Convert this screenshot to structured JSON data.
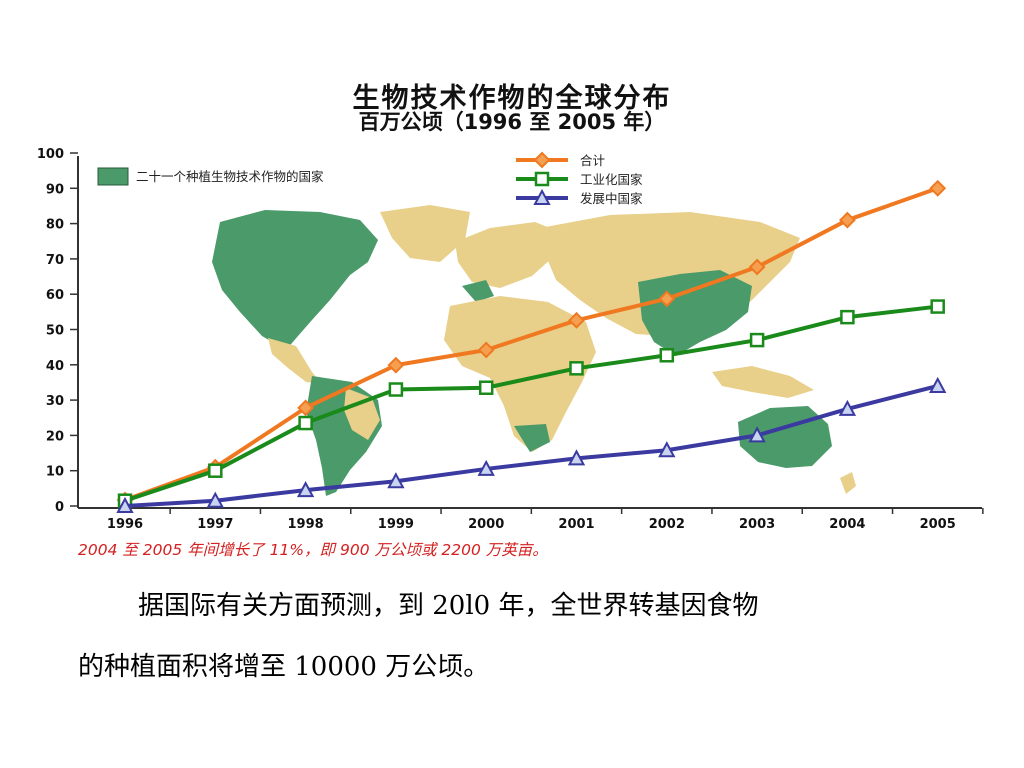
{
  "chart_data": {
    "type": "line",
    "title": "生物技术作物的全球分布",
    "subtitle": "百万公顷（1996 至 2005 年）",
    "categories": [
      "1996",
      "1997",
      "1998",
      "1999",
      "2000",
      "2001",
      "2002",
      "2003",
      "2004",
      "2005"
    ],
    "ylim": [
      0,
      100
    ],
    "yticks": [
      "0",
      "10",
      "20",
      "30",
      "40",
      "50",
      "60",
      "70",
      "80",
      "90",
      "100"
    ],
    "series": [
      {
        "name": "合计",
        "marker": "diamond",
        "color": "#f07820",
        "values": [
          1.7,
          11,
          27.8,
          39.9,
          44.2,
          52.6,
          58.7,
          67.7,
          81,
          90
        ]
      },
      {
        "name": "工业化国家",
        "marker": "square",
        "color": "#1a8a1a",
        "values": [
          1.5,
          10,
          23.5,
          33,
          33.5,
          39,
          42.7,
          47,
          53.5,
          56.5
        ]
      },
      {
        "name": "发展中国家",
        "marker": "triangle",
        "color": "#3a3aa0",
        "values": [
          0,
          1.5,
          4.5,
          7,
          10.5,
          13.5,
          15.8,
          20,
          27.5,
          34
        ]
      }
    ],
    "map_legend": {
      "label": "二十一个种植生物技术作物的国家",
      "color": "#4a9a6a"
    },
    "legend_position": "top-right",
    "grid": false,
    "note": "2004 至 2005 年间增长了 11%，即 900 万公顷或 2200 万英亩。"
  },
  "text": {
    "para_line_1": "据国际有关方面预测，到 20l0 年，全世界转基因食物",
    "para_line_2": "的种植面积将增至 10000 万公顷。"
  }
}
